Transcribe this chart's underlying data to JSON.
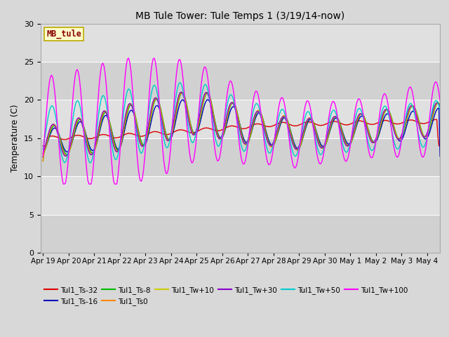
{
  "title": "MB Tule Tower: Tule Temps 1 (3/19/14-now)",
  "ylabel": "Temperature (C)",
  "station_label": "MB_tule",
  "ylim": [
    0,
    30
  ],
  "yticks": [
    0,
    5,
    10,
    15,
    20,
    25,
    30
  ],
  "xtick_labels": [
    "Apr 19",
    "Apr 20",
    "Apr 21",
    "Apr 22",
    "Apr 23",
    "Apr 24",
    "Apr 25",
    "Apr 26",
    "Apr 27",
    "Apr 28",
    "Apr 29",
    "Apr 30",
    "May 1",
    "May 2",
    "May 3",
    "May 4"
  ],
  "xtick_positions": [
    0,
    1,
    2,
    3,
    4,
    5,
    6,
    7,
    8,
    9,
    10,
    11,
    12,
    13,
    14,
    15
  ],
  "series": [
    {
      "name": "Tul1_Ts-32",
      "color": "#dd0000"
    },
    {
      "name": "Tul1_Ts-16",
      "color": "#0000bb"
    },
    {
      "name": "Tul1_Ts-8",
      "color": "#00bb00"
    },
    {
      "name": "Tul1_Ts0",
      "color": "#ff8800"
    },
    {
      "name": "Tul1_Tw+10",
      "color": "#cccc00"
    },
    {
      "name": "Tul1_Tw+30",
      "color": "#8800cc"
    },
    {
      "name": "Tul1_Tw+50",
      "color": "#00cccc"
    },
    {
      "name": "Tul1_Tw+100",
      "color": "#ff00ff"
    }
  ],
  "fig_facecolor": "#d8d8d8",
  "ax_facecolor": "#e0e0e0",
  "grid_color": "#ffffff",
  "band_color": "#d0d0d0"
}
